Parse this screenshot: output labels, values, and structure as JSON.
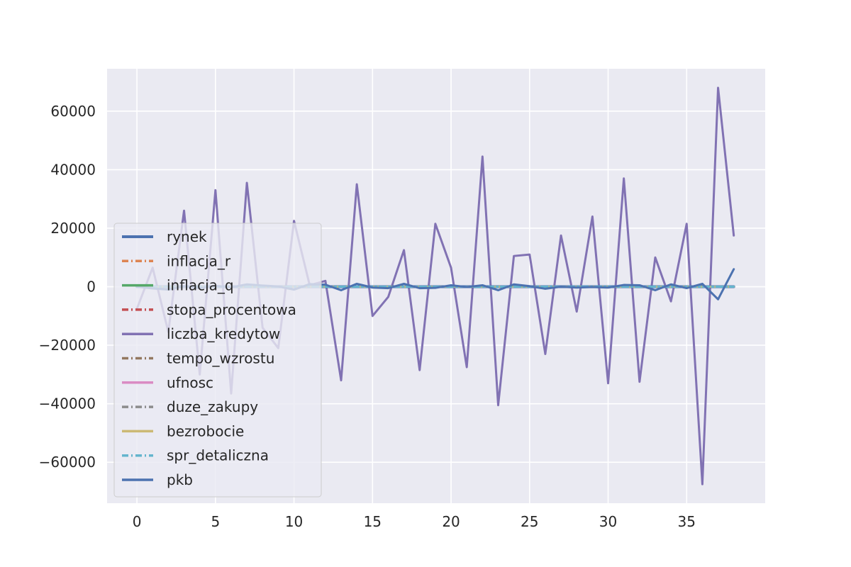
{
  "chart_data": {
    "type": "line",
    "title": "",
    "xlabel": "",
    "ylabel": "",
    "xlim": [
      -1.9,
      40.0
    ],
    "ylim": [
      -74000,
      74500
    ],
    "grid": true,
    "legend_position": "center-left",
    "x_ticks": [
      0,
      5,
      10,
      15,
      20,
      25,
      30,
      35
    ],
    "x_tick_labels": [
      "0",
      "5",
      "10",
      "15",
      "20",
      "25",
      "30",
      "35"
    ],
    "y_ticks": [
      -60000,
      -40000,
      -20000,
      0,
      20000,
      40000,
      60000
    ],
    "y_tick_labels": [
      "−60000",
      "−40000",
      "−20000",
      "0",
      "20000",
      "40000",
      "60000"
    ],
    "x": [
      0,
      1,
      2,
      3,
      4,
      5,
      6,
      7,
      8,
      9,
      10,
      11,
      12,
      13,
      14,
      15,
      16,
      17,
      18,
      19,
      20,
      21,
      22,
      23,
      24,
      25,
      26,
      27,
      28,
      29,
      30,
      31,
      32,
      33,
      34,
      35,
      36,
      37,
      38
    ],
    "series": [
      {
        "name": "rynek",
        "color": "#4c72b0",
        "dash": "solid",
        "width": 4,
        "values": [
          0,
          0,
          0,
          0,
          0,
          0,
          0,
          0,
          0,
          0,
          0,
          0,
          0,
          0,
          0,
          0,
          0,
          0,
          0,
          0,
          0,
          0,
          0,
          0,
          0,
          0,
          0,
          0,
          0,
          0,
          0,
          0,
          0,
          0,
          0,
          0,
          0,
          0,
          0
        ]
      },
      {
        "name": "inflacja_r",
        "color": "#dd8452",
        "dash": "dashdot",
        "width": 3,
        "values": [
          0,
          0,
          0,
          0,
          0,
          0,
          0,
          0,
          0,
          0,
          0,
          0,
          0,
          0,
          0,
          0,
          0,
          0,
          0,
          0,
          0,
          0,
          0,
          0,
          0,
          0,
          0,
          0,
          0,
          0,
          0,
          0,
          0,
          0,
          0,
          0,
          0,
          0,
          0
        ]
      },
      {
        "name": "inflacja_q",
        "color": "#55a868",
        "dash": "solid",
        "width": 3,
        "values": [
          0,
          0,
          0,
          0,
          0,
          0,
          0,
          0,
          0,
          0,
          0,
          0,
          0,
          0,
          0,
          0,
          0,
          0,
          0,
          0,
          0,
          0,
          0,
          0,
          0,
          0,
          0,
          0,
          0,
          0,
          0,
          0,
          0,
          0,
          0,
          0,
          0,
          0,
          0
        ]
      },
      {
        "name": "stopa_procentowa",
        "color": "#c44e52",
        "dash": "dashdot",
        "width": 3,
        "values": [
          0,
          0,
          0,
          0,
          0,
          0,
          0,
          0,
          0,
          0,
          0,
          0,
          0,
          0,
          0,
          0,
          0,
          0,
          0,
          0,
          0,
          0,
          0,
          0,
          0,
          0,
          0,
          0,
          0,
          0,
          0,
          0,
          0,
          0,
          0,
          0,
          0,
          0,
          0
        ]
      },
      {
        "name": "liczba_kredytow",
        "color": "#8172b3",
        "dash": "solid",
        "width": 3,
        "values": [
          -7500,
          6500,
          -15500,
          26000,
          -30000,
          33000,
          -36500,
          35500,
          -14000,
          -21000,
          22500,
          500,
          2000,
          -32000,
          35000,
          -10000,
          -3500,
          12500,
          -28500,
          21500,
          6500,
          -27500,
          44500,
          -40500,
          10500,
          11000,
          -23000,
          17500,
          -8500,
          24000,
          -33000,
          37000,
          -32500,
          10000,
          -5000,
          21500,
          -67500,
          68000,
          17500
        ]
      },
      {
        "name": "tempo_wzrostu",
        "color": "#937860",
        "dash": "dashdot",
        "width": 3,
        "values": [
          0,
          0,
          0,
          0,
          0,
          0,
          0,
          0,
          0,
          0,
          0,
          0,
          0,
          0,
          0,
          0,
          0,
          0,
          0,
          0,
          0,
          0,
          0,
          0,
          0,
          0,
          0,
          0,
          0,
          0,
          0,
          0,
          0,
          0,
          0,
          0,
          0,
          0,
          0
        ]
      },
      {
        "name": "ufnosc",
        "color": "#da8bc3",
        "dash": "solid",
        "width": 3,
        "values": [
          0,
          0,
          0,
          0,
          0,
          0,
          0,
          0,
          0,
          0,
          0,
          0,
          0,
          0,
          0,
          0,
          0,
          0,
          0,
          0,
          0,
          0,
          0,
          0,
          0,
          0,
          0,
          0,
          0,
          0,
          0,
          0,
          0,
          0,
          0,
          0,
          0,
          0,
          0
        ]
      },
      {
        "name": "duze_zakupy",
        "color": "#8c8c8c",
        "dash": "dashdot",
        "width": 3,
        "values": [
          0,
          0,
          0,
          0,
          0,
          0,
          0,
          0,
          0,
          0,
          0,
          0,
          0,
          0,
          0,
          0,
          0,
          0,
          0,
          0,
          0,
          0,
          0,
          0,
          0,
          0,
          0,
          0,
          0,
          0,
          0,
          0,
          0,
          0,
          0,
          0,
          0,
          0,
          0
        ]
      },
      {
        "name": "bezrobocie",
        "color": "#ccb974",
        "dash": "solid",
        "width": 3,
        "values": [
          0,
          0,
          0,
          0,
          0,
          0,
          0,
          0,
          0,
          0,
          0,
          0,
          0,
          0,
          0,
          0,
          0,
          0,
          0,
          0,
          0,
          0,
          0,
          0,
          0,
          0,
          0,
          0,
          0,
          0,
          0,
          0,
          0,
          0,
          0,
          0,
          0,
          0,
          0
        ]
      },
      {
        "name": "spr_detaliczna",
        "color": "#64b5cd",
        "dash": "dashdot",
        "width": 3,
        "values": [
          0,
          0,
          0,
          0,
          0,
          0,
          0,
          0,
          0,
          0,
          0,
          0,
          0,
          0,
          0,
          0,
          0,
          0,
          0,
          0,
          0,
          0,
          0,
          0,
          0,
          0,
          0,
          0,
          0,
          0,
          0,
          0,
          0,
          0,
          0,
          0,
          0,
          0,
          0
        ]
      },
      {
        "name": "pkb",
        "color": "#4c72b0",
        "dash": "solid",
        "width": 3,
        "values": [
          0,
          -600,
          -1000,
          200,
          -500,
          300,
          -200,
          800,
          400,
          100,
          -1000,
          900,
          700,
          -1200,
          1000,
          -300,
          -500,
          1000,
          -500,
          -400,
          500,
          -100,
          500,
          -1200,
          800,
          200,
          -700,
          0,
          -300,
          -100,
          -300,
          600,
          500,
          -1200,
          800,
          -500,
          1000,
          -4300,
          6000
        ]
      }
    ]
  }
}
